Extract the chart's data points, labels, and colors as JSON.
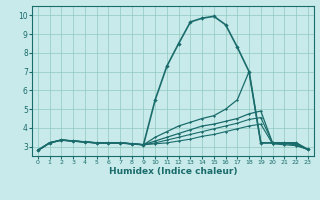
{
  "xlabel": "Humidex (Indice chaleur)",
  "background_color": "#c8eaea",
  "grid_color": "#90c8c0",
  "line_color": "#1a6b6b",
  "xlim": [
    -0.5,
    23.5
  ],
  "ylim": [
    2.5,
    10.5
  ],
  "xticks": [
    0,
    1,
    2,
    3,
    4,
    5,
    6,
    7,
    8,
    9,
    10,
    11,
    12,
    13,
    14,
    15,
    16,
    17,
    18,
    19,
    20,
    21,
    22,
    23
  ],
  "yticks": [
    3,
    4,
    5,
    6,
    7,
    8,
    9,
    10
  ],
  "lines": [
    {
      "x": [
        0,
        1,
        2,
        3,
        4,
        5,
        6,
        7,
        8,
        9,
        10,
        11,
        12,
        13,
        14,
        15,
        16,
        17,
        18,
        19,
        20,
        21,
        22,
        23
      ],
      "y": [
        2.8,
        3.2,
        3.35,
        3.3,
        3.25,
        3.2,
        3.2,
        3.2,
        3.15,
        3.1,
        5.5,
        7.3,
        8.5,
        9.65,
        9.85,
        9.95,
        9.5,
        8.3,
        7.0,
        3.2,
        3.2,
        3.2,
        3.2,
        2.85
      ],
      "lw": 1.2
    },
    {
      "x": [
        0,
        1,
        2,
        3,
        4,
        5,
        6,
        7,
        8,
        9,
        10,
        11,
        12,
        13,
        14,
        15,
        16,
        17,
        18,
        19,
        20,
        21,
        22,
        23
      ],
      "y": [
        2.8,
        3.2,
        3.35,
        3.3,
        3.25,
        3.2,
        3.2,
        3.2,
        3.15,
        3.1,
        3.5,
        3.8,
        4.1,
        4.3,
        4.5,
        4.65,
        5.0,
        5.5,
        7.0,
        3.2,
        3.2,
        3.2,
        3.2,
        2.85
      ],
      "lw": 0.9
    },
    {
      "x": [
        0,
        1,
        2,
        3,
        4,
        5,
        6,
        7,
        8,
        9,
        10,
        11,
        12,
        13,
        14,
        15,
        16,
        17,
        18,
        19,
        20,
        21,
        22,
        23
      ],
      "y": [
        2.8,
        3.2,
        3.35,
        3.3,
        3.25,
        3.2,
        3.2,
        3.2,
        3.15,
        3.1,
        3.3,
        3.5,
        3.7,
        3.9,
        4.1,
        4.2,
        4.35,
        4.5,
        4.75,
        4.9,
        3.2,
        3.2,
        3.15,
        2.85
      ],
      "lw": 0.9
    },
    {
      "x": [
        0,
        1,
        2,
        3,
        4,
        5,
        6,
        7,
        8,
        9,
        10,
        11,
        12,
        13,
        14,
        15,
        16,
        17,
        18,
        19,
        20,
        21,
        22,
        23
      ],
      "y": [
        2.8,
        3.2,
        3.35,
        3.3,
        3.25,
        3.2,
        3.2,
        3.2,
        3.15,
        3.1,
        3.2,
        3.35,
        3.5,
        3.65,
        3.8,
        3.95,
        4.1,
        4.25,
        4.45,
        4.55,
        3.2,
        3.15,
        3.1,
        2.85
      ],
      "lw": 0.8
    },
    {
      "x": [
        0,
        1,
        2,
        3,
        4,
        5,
        6,
        7,
        8,
        9,
        10,
        11,
        12,
        13,
        14,
        15,
        16,
        17,
        18,
        19,
        20,
        21,
        22,
        23
      ],
      "y": [
        2.8,
        3.2,
        3.35,
        3.3,
        3.25,
        3.2,
        3.2,
        3.2,
        3.15,
        3.1,
        3.15,
        3.2,
        3.3,
        3.4,
        3.55,
        3.65,
        3.8,
        3.95,
        4.1,
        4.2,
        3.15,
        3.1,
        3.05,
        2.85
      ],
      "lw": 0.8
    }
  ]
}
